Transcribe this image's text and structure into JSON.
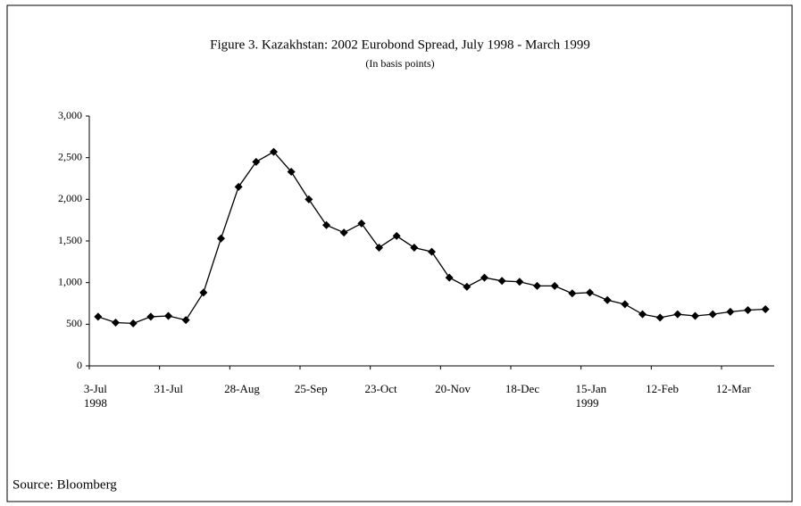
{
  "chart_data": {
    "type": "line",
    "title": "Figure 3. Kazakhstan:  2002 Eurobond Spread, July 1998 - March 1999",
    "subtitle": "(In basis points)",
    "source": "Source: Bloomberg",
    "categories": [
      "3-Jul\n1998",
      null,
      null,
      null,
      "31-Jul",
      null,
      null,
      null,
      "28-Aug",
      null,
      null,
      null,
      "25-Sep",
      null,
      null,
      null,
      "23-Oct",
      null,
      null,
      null,
      "20-Nov",
      null,
      null,
      null,
      "18-Dec",
      null,
      null,
      null,
      "15-Jan\n1999",
      null,
      null,
      null,
      "12-Feb",
      null,
      null,
      null,
      "12-Mar",
      null,
      null
    ],
    "values": [
      590,
      520,
      510,
      590,
      600,
      550,
      880,
      1530,
      2150,
      2450,
      2570,
      2330,
      2000,
      1690,
      1600,
      1710,
      1420,
      1560,
      1420,
      1370,
      1060,
      950,
      1060,
      1020,
      1010,
      960,
      960,
      870,
      880,
      790,
      740,
      620,
      580,
      620,
      600,
      620,
      650,
      670,
      680
    ],
    "color": "#000000",
    "ylim": [
      0,
      3000
    ],
    "yticks": [
      0,
      {
        "value": 500,
        "label": "500"
      },
      {
        "value": 1000,
        "label": "1,000"
      },
      {
        "value": 1500,
        "label": "1,500"
      },
      {
        "value": 2000,
        "label": "2,000"
      },
      {
        "value": 2500,
        "label": "2,500"
      },
      {
        "value": 3000,
        "label": "3,000"
      }
    ],
    "grid": false
  }
}
